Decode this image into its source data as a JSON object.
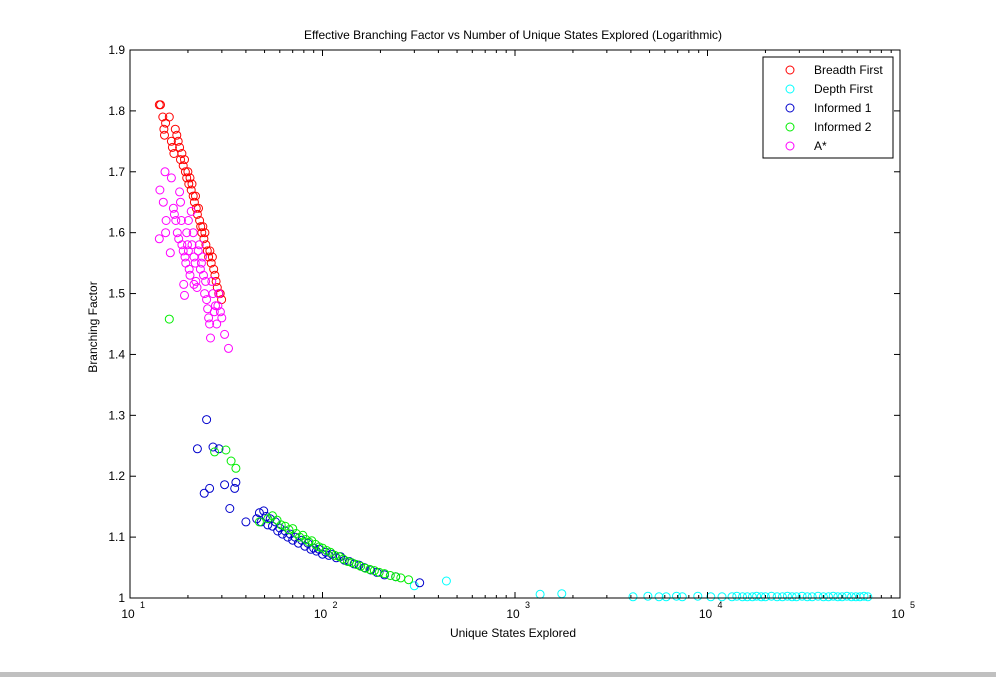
{
  "chart_data": {
    "type": "scatter",
    "title": "Effective Branching Factor vs Number of Unique States Explored (Logarithmic)",
    "xlabel": "Unique States Explored",
    "ylabel": "Branching Factor",
    "xscale": "log",
    "xlim": [
      10,
      100000
    ],
    "ylim": [
      1,
      1.9
    ],
    "x_ticks": [
      {
        "value": 10,
        "base": "10",
        "exp": "1"
      },
      {
        "value": 100,
        "base": "10",
        "exp": "2"
      },
      {
        "value": 1000,
        "base": "10",
        "exp": "3"
      },
      {
        "value": 10000,
        "base": "10",
        "exp": "4"
      },
      {
        "value": 100000,
        "base": "10",
        "exp": "5"
      }
    ],
    "y_ticks": [
      {
        "value": 1,
        "label": "1"
      },
      {
        "value": 1.1,
        "label": "1.1"
      },
      {
        "value": 1.2,
        "label": "1.2"
      },
      {
        "value": 1.3,
        "label": "1.3"
      },
      {
        "value": 1.4,
        "label": "1.4"
      },
      {
        "value": 1.5,
        "label": "1.5"
      },
      {
        "value": 1.6,
        "label": "1.6"
      },
      {
        "value": 1.7,
        "label": "1.7"
      },
      {
        "value": 1.8,
        "label": "1.8"
      },
      {
        "value": 1.9,
        "label": "1.9"
      }
    ],
    "grid": false,
    "legend_position": "top-right",
    "marker": "open-circle",
    "series": [
      {
        "name": "Breadth First",
        "color": "#ff0000",
        "points": [
          [
            14.2,
            1.81
          ],
          [
            14.4,
            1.81
          ],
          [
            14.8,
            1.79
          ],
          [
            15.0,
            1.77
          ],
          [
            15.1,
            1.76
          ],
          [
            15.3,
            1.78
          ],
          [
            16.0,
            1.79
          ],
          [
            16.4,
            1.75
          ],
          [
            16.6,
            1.74
          ],
          [
            16.9,
            1.73
          ],
          [
            17.2,
            1.77
          ],
          [
            17.5,
            1.76
          ],
          [
            17.8,
            1.75
          ],
          [
            18.1,
            1.74
          ],
          [
            18.3,
            1.72
          ],
          [
            18.6,
            1.73
          ],
          [
            18.9,
            1.71
          ],
          [
            19.2,
            1.72
          ],
          [
            19.4,
            1.7
          ],
          [
            19.7,
            1.69
          ],
          [
            20.0,
            1.7
          ],
          [
            20.2,
            1.68
          ],
          [
            20.5,
            1.69
          ],
          [
            20.8,
            1.67
          ],
          [
            21.0,
            1.68
          ],
          [
            21.3,
            1.66
          ],
          [
            21.6,
            1.65
          ],
          [
            21.9,
            1.66
          ],
          [
            22.1,
            1.64
          ],
          [
            22.4,
            1.63
          ],
          [
            22.7,
            1.64
          ],
          [
            23.0,
            1.62
          ],
          [
            23.3,
            1.61
          ],
          [
            23.6,
            1.6
          ],
          [
            23.9,
            1.61
          ],
          [
            24.2,
            1.59
          ],
          [
            24.5,
            1.6
          ],
          [
            24.8,
            1.58
          ],
          [
            25.2,
            1.57
          ],
          [
            25.6,
            1.56
          ],
          [
            26.0,
            1.57
          ],
          [
            26.4,
            1.55
          ],
          [
            26.8,
            1.56
          ],
          [
            27.2,
            1.54
          ],
          [
            27.6,
            1.53
          ],
          [
            28.0,
            1.52
          ],
          [
            28.4,
            1.51
          ],
          [
            28.9,
            1.5
          ],
          [
            29.4,
            1.5
          ],
          [
            29.9,
            1.49
          ]
        ]
      },
      {
        "name": "Depth First",
        "color": "#00ffff",
        "points": [
          [
            300,
            1.02
          ],
          [
            440,
            1.028
          ],
          [
            1350,
            1.006
          ],
          [
            1750,
            1.007
          ],
          [
            4100,
            1.002
          ],
          [
            4900,
            1.003
          ],
          [
            5600,
            1.002
          ],
          [
            6100,
            1.002
          ],
          [
            6900,
            1.003
          ],
          [
            7400,
            1.002
          ],
          [
            8900,
            1.003
          ],
          [
            10400,
            1.002
          ],
          [
            11900,
            1.002
          ],
          [
            13400,
            1.002
          ],
          [
            14200,
            1.003
          ],
          [
            15200,
            1.002
          ],
          [
            16100,
            1.002
          ],
          [
            17100,
            1.002
          ],
          [
            18000,
            1.003
          ],
          [
            19000,
            1.002
          ],
          [
            20000,
            1.002
          ],
          [
            21500,
            1.003
          ],
          [
            23000,
            1.002
          ],
          [
            24500,
            1.002
          ],
          [
            26000,
            1.003
          ],
          [
            27500,
            1.002
          ],
          [
            29000,
            1.002
          ],
          [
            31000,
            1.003
          ],
          [
            33000,
            1.002
          ],
          [
            35000,
            1.002
          ],
          [
            37500,
            1.003
          ],
          [
            40000,
            1.002
          ],
          [
            42500,
            1.002
          ],
          [
            45000,
            1.003
          ],
          [
            47500,
            1.002
          ],
          [
            50000,
            1.002
          ],
          [
            53000,
            1.003
          ],
          [
            56000,
            1.002
          ],
          [
            59000,
            1.002
          ],
          [
            62000,
            1.002
          ],
          [
            65000,
            1.003
          ],
          [
            68000,
            1.002
          ]
        ]
      },
      {
        "name": "Informed 1",
        "color": "#0000cc",
        "points": [
          [
            22.4,
            1.245
          ],
          [
            24.3,
            1.172
          ],
          [
            25.0,
            1.293
          ],
          [
            25.9,
            1.18
          ],
          [
            27.0,
            1.248
          ],
          [
            29.0,
            1.245
          ],
          [
            31.0,
            1.186
          ],
          [
            33.0,
            1.147
          ],
          [
            35.0,
            1.18
          ],
          [
            35.5,
            1.19
          ],
          [
            40.0,
            1.125
          ],
          [
            45.5,
            1.13
          ],
          [
            47.0,
            1.14
          ],
          [
            48.0,
            1.125
          ],
          [
            49.5,
            1.143
          ],
          [
            51.0,
            1.134
          ],
          [
            52.0,
            1.12
          ],
          [
            53.5,
            1.13
          ],
          [
            55.0,
            1.118
          ],
          [
            57.0,
            1.125
          ],
          [
            58.5,
            1.11
          ],
          [
            60.0,
            1.115
          ],
          [
            62.0,
            1.105
          ],
          [
            64.0,
            1.11
          ],
          [
            66.0,
            1.1
          ],
          [
            68.0,
            1.105
          ],
          [
            70.0,
            1.095
          ],
          [
            72.0,
            1.1
          ],
          [
            75.0,
            1.09
          ],
          [
            78.0,
            1.095
          ],
          [
            81.0,
            1.085
          ],
          [
            84.0,
            1.09
          ],
          [
            87.0,
            1.08
          ],
          [
            90.0,
            1.082
          ],
          [
            93.0,
            1.077
          ],
          [
            96.0,
            1.08
          ],
          [
            100.0,
            1.072
          ],
          [
            104.0,
            1.075
          ],
          [
            108.0,
            1.07
          ],
          [
            112.0,
            1.072
          ],
          [
            118.0,
            1.066
          ],
          [
            124.0,
            1.068
          ],
          [
            130.0,
            1.062
          ],
          [
            138.0,
            1.06
          ],
          [
            146.0,
            1.056
          ],
          [
            155.0,
            1.054
          ],
          [
            165.0,
            1.05
          ],
          [
            178.0,
            1.046
          ],
          [
            192.0,
            1.042
          ],
          [
            210.0,
            1.038
          ],
          [
            240.0,
            1.035
          ],
          [
            320.0,
            1.025
          ]
        ]
      },
      {
        "name": "Informed 2",
        "color": "#00ee00",
        "points": [
          [
            16.0,
            1.458
          ],
          [
            27.5,
            1.24
          ],
          [
            31.5,
            1.243
          ],
          [
            33.5,
            1.225
          ],
          [
            35.5,
            1.213
          ],
          [
            47.0,
            1.125
          ],
          [
            52.0,
            1.13
          ],
          [
            55.0,
            1.135
          ],
          [
            58.0,
            1.128
          ],
          [
            61.0,
            1.12
          ],
          [
            64.0,
            1.118
          ],
          [
            67.0,
            1.112
          ],
          [
            70.0,
            1.114
          ],
          [
            73.0,
            1.106
          ],
          [
            76.0,
            1.1
          ],
          [
            79.0,
            1.103
          ],
          [
            82.0,
            1.096
          ],
          [
            85.0,
            1.092
          ],
          [
            88.0,
            1.094
          ],
          [
            92.0,
            1.088
          ],
          [
            96.0,
            1.084
          ],
          [
            100.0,
            1.082
          ],
          [
            105.0,
            1.078
          ],
          [
            110.0,
            1.075
          ],
          [
            116.0,
            1.07
          ],
          [
            122.0,
            1.068
          ],
          [
            128.0,
            1.064
          ],
          [
            135.0,
            1.06
          ],
          [
            142.0,
            1.058
          ],
          [
            150.0,
            1.055
          ],
          [
            158.0,
            1.052
          ],
          [
            167.0,
            1.049
          ],
          [
            176.0,
            1.047
          ],
          [
            186.0,
            1.045
          ],
          [
            197.0,
            1.042
          ],
          [
            210.0,
            1.04
          ],
          [
            225.0,
            1.037
          ],
          [
            240.0,
            1.035
          ],
          [
            255.0,
            1.033
          ],
          [
            280.0,
            1.03
          ]
        ]
      },
      {
        "name": "A*",
        "color": "#ff00ff",
        "points": [
          [
            14.2,
            1.59
          ],
          [
            14.3,
            1.67
          ],
          [
            14.9,
            1.65
          ],
          [
            15.2,
            1.7
          ],
          [
            15.3,
            1.6
          ],
          [
            15.4,
            1.62
          ],
          [
            16.2,
            1.567
          ],
          [
            16.4,
            1.69
          ],
          [
            16.8,
            1.64
          ],
          [
            17.0,
            1.63
          ],
          [
            17.3,
            1.62
          ],
          [
            17.6,
            1.6
          ],
          [
            17.9,
            1.59
          ],
          [
            18.1,
            1.667
          ],
          [
            18.3,
            1.65
          ],
          [
            18.5,
            1.62
          ],
          [
            18.6,
            1.58
          ],
          [
            18.9,
            1.57
          ],
          [
            19.0,
            1.515
          ],
          [
            19.3,
            1.56
          ],
          [
            19.5,
            1.55
          ],
          [
            19.7,
            1.6
          ],
          [
            19.9,
            1.58
          ],
          [
            20.1,
            1.57
          ],
          [
            20.3,
            1.54
          ],
          [
            20.5,
            1.53
          ],
          [
            20.8,
            1.635
          ],
          [
            21.0,
            1.58
          ],
          [
            21.3,
            1.6
          ],
          [
            21.5,
            1.56
          ],
          [
            21.8,
            1.55
          ],
          [
            22.0,
            1.52
          ],
          [
            22.3,
            1.51
          ],
          [
            22.6,
            1.57
          ],
          [
            22.9,
            1.58
          ],
          [
            23.2,
            1.54
          ],
          [
            23.5,
            1.55
          ],
          [
            23.8,
            1.56
          ],
          [
            24.1,
            1.53
          ],
          [
            24.4,
            1.5
          ],
          [
            24.7,
            1.52
          ],
          [
            25.0,
            1.49
          ],
          [
            25.3,
            1.475
          ],
          [
            25.6,
            1.46
          ],
          [
            25.9,
            1.45
          ],
          [
            26.2,
            1.427
          ],
          [
            26.6,
            1.52
          ],
          [
            27.0,
            1.5
          ],
          [
            27.4,
            1.47
          ],
          [
            27.8,
            1.48
          ],
          [
            28.2,
            1.45
          ],
          [
            28.6,
            1.48
          ],
          [
            29.0,
            1.5
          ],
          [
            29.5,
            1.47
          ],
          [
            30.0,
            1.46
          ],
          [
            31.0,
            1.433
          ],
          [
            32.5,
            1.41
          ],
          [
            19.2,
            1.497
          ],
          [
            20.1,
            1.62
          ],
          [
            21.5,
            1.515
          ]
        ]
      }
    ]
  }
}
